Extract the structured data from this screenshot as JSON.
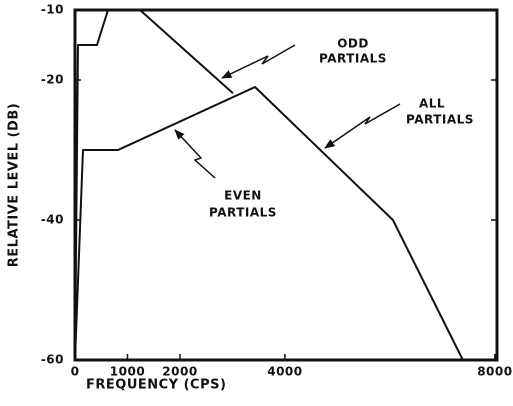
{
  "chart_data": {
    "type": "line",
    "xlabel": "FREQUENCY (CPS)",
    "ylabel": "RELATIVE LEVEL (DB)",
    "xlim": [
      0,
      8040
    ],
    "ylim": [
      -60,
      -10
    ],
    "xticks": [
      0,
      1000,
      2000,
      4000,
      8000
    ],
    "yticks": [
      -10,
      -20,
      -40,
      -60
    ],
    "series": [
      {
        "color": "#111111",
        "x": [
          0,
          57,
          419,
          629,
          1238,
          3010
        ],
        "values": [
          -60,
          -15,
          -15,
          -10,
          -10,
          -21.9
        ]
      },
      {
        "color": "#111111",
        "x": [
          0,
          152,
          819,
          3429,
          6057,
          7390
        ],
        "values": [
          -60,
          -30,
          -30,
          -21,
          -40,
          -60
        ]
      }
    ],
    "annotations": [
      {
        "lines": [
          "ODD",
          "PARTIALS"
        ]
      },
      {
        "lines": [
          "ALL",
          "PARTIALS"
        ]
      },
      {
        "lines": [
          "EVEN",
          "PARTIALS"
        ]
      }
    ]
  }
}
